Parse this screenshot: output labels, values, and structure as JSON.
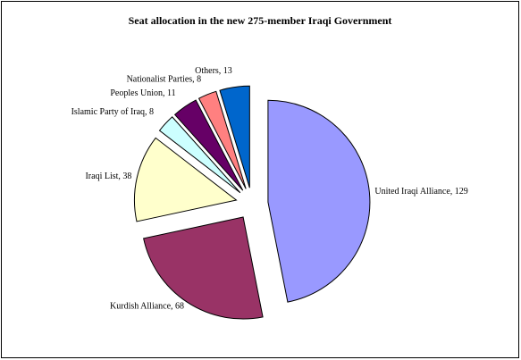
{
  "chart_data": {
    "type": "pie",
    "title": "Seat allocation in the new 275-member Iraqi Government",
    "values": [
      129,
      68,
      38,
      8,
      11,
      8,
      13
    ],
    "value_labels": [
      "United Iraqi Alliance, 129",
      "Kurdish Alliance, 68",
      "Iraqi List, 38",
      "Islamic Party of Iraq, 8",
      "Peoples Union, 11",
      "Nationalist Parties, 8",
      "Others, 13"
    ],
    "colors": [
      "#9999ff",
      "#993366",
      "#ffffcc",
      "#ccffff",
      "#660066",
      "#ff8080",
      "#0066cc"
    ]
  }
}
